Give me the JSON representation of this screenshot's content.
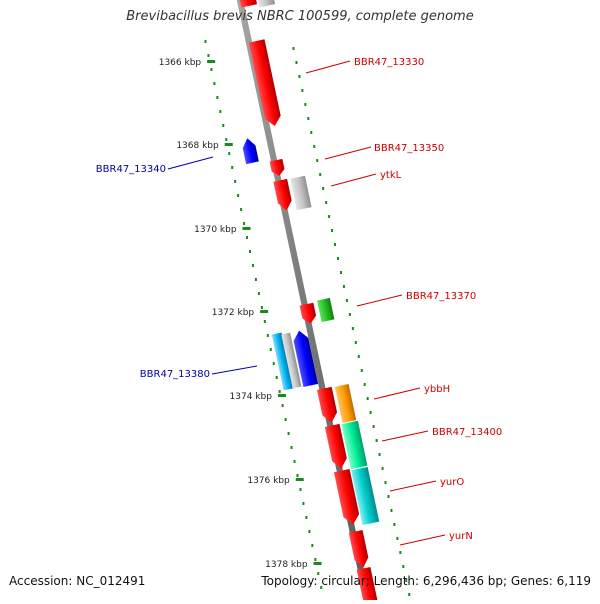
{
  "title": "Brevibacillus brevis NBRC 100599, complete genome",
  "footer": {
    "accession": "Accession: NC_012491",
    "summary": "Topology: circular; Length: 6,296,436 bp; Genes: 6,119"
  },
  "colors": {
    "backbone": "#808080",
    "tick": "#1a8a1a",
    "label_forward": "#cc0000",
    "label_reverse": "#0000aa"
  },
  "scale_ticks": [
    {
      "label": "1366 kbp",
      "kbp": 1366
    },
    {
      "label": "1368 kbp",
      "kbp": 1368
    },
    {
      "label": "1370 kbp",
      "kbp": 1370
    },
    {
      "label": "1372 kbp",
      "kbp": 1372
    },
    {
      "label": "1374 kbp",
      "kbp": 1374
    },
    {
      "label": "1376 kbp",
      "kbp": 1376
    },
    {
      "label": "1378 kbp",
      "kbp": 1378
    }
  ],
  "genes": [
    {
      "name": "BBR47_13330",
      "strand": "forward",
      "color": "#ff0000",
      "labeled": true
    },
    {
      "name": "BBR47_13340",
      "strand": "reverse",
      "color": "#0000ff",
      "labeled": true
    },
    {
      "name": "BBR47_13350",
      "strand": "forward",
      "color": "#ff0000",
      "labeled": true
    },
    {
      "name": "ytkL",
      "strand": "forward",
      "color": "#c0c0c0",
      "labeled": true
    },
    {
      "name": "BBR47_13370",
      "strand": "forward",
      "color": "#22bb22",
      "labeled": true
    },
    {
      "name": "BBR47_13380",
      "strand": "reverse",
      "color": "#00b4f0",
      "labeled": true
    },
    {
      "name": "ybbH",
      "strand": "forward",
      "color": "#ff9900",
      "labeled": true
    },
    {
      "name": "BBR47_13400",
      "strand": "forward",
      "color": "#00ee99",
      "labeled": true
    },
    {
      "name": "yurO",
      "strand": "forward",
      "color": "#00cccc",
      "labeled": true
    },
    {
      "name": "yurN",
      "strand": "forward",
      "color": "#ff0000",
      "labeled": true
    }
  ]
}
